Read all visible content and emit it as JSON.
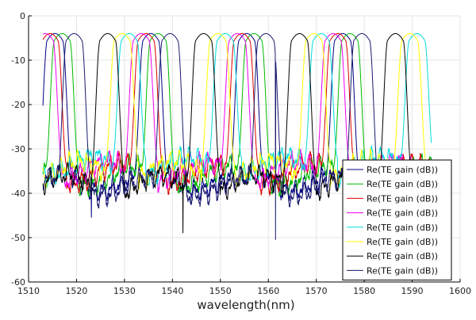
{
  "chart_data": {
    "type": "line",
    "xlabel": "wavelength(nm)",
    "ylabel": "",
    "title": "",
    "xlim": [
      1510,
      1600
    ],
    "ylim": [
      -60,
      0
    ],
    "x_ticks": [
      "1510",
      "1520",
      "1530",
      "1540",
      "1550",
      "1560",
      "1570",
      "1580",
      "1590",
      "1600"
    ],
    "y_ticks": [
      "0",
      "-10",
      "-20",
      "-30",
      "-40",
      "-50",
      "-60"
    ],
    "grid": true,
    "legend_position": "bottom-right",
    "wavelength_range": [
      1513,
      1594
    ],
    "channel_spacing_nm": 20,
    "series": [
      {
        "name": "Re(TE gain (dB))",
        "color": "#000080",
        "peaks": [
          1515.5,
          1535.5,
          1555.5,
          1575.5
        ],
        "floor": -37,
        "spike_at": 1523.1,
        "spike_value": -45.5
      },
      {
        "name": "Re(TE gain (dB))",
        "color": "#00bb00",
        "peaks": [
          1517.0,
          1537.0,
          1557.0,
          1577.0
        ],
        "floor": -36
      },
      {
        "name": "Re(TE gain (dB))",
        "color": "#dd0000",
        "peaks": [
          1514.5,
          1534.5,
          1554.5,
          1574.5
        ],
        "floor": -35.5
      },
      {
        "name": "Re(TE gain (dB))",
        "color": "#ee00ee",
        "peaks": [
          1513.5,
          1533.5,
          1553.5,
          1573.5
        ],
        "floor": -35
      },
      {
        "name": "Re(TE gain (dB))",
        "color": "#00dddd",
        "peaks": [
          1531.0,
          1551.0,
          1571.0,
          1591.0
        ],
        "floor": -34
      },
      {
        "name": "Re(TE gain (dB))",
        "color": "#ffff00",
        "peaks": [
          1529.5,
          1549.5,
          1569.5,
          1589.5
        ],
        "floor": -35
      },
      {
        "name": "Re(TE gain (dB))",
        "color": "#000000",
        "peaks": [
          1526.5,
          1546.5,
          1566.5,
          1586.5
        ],
        "floor": -38,
        "spike_at": 1542.2,
        "spike_value": -49
      },
      {
        "name": "Re(TE gain (dB))",
        "color": "#1a1a6e",
        "peaks": [
          1519.5,
          1539.5,
          1559.5,
          1579.5
        ],
        "floor": -38.5,
        "spike_at": 1561.5,
        "spike_value": -50.5
      }
    ],
    "peak_value": -4
  }
}
